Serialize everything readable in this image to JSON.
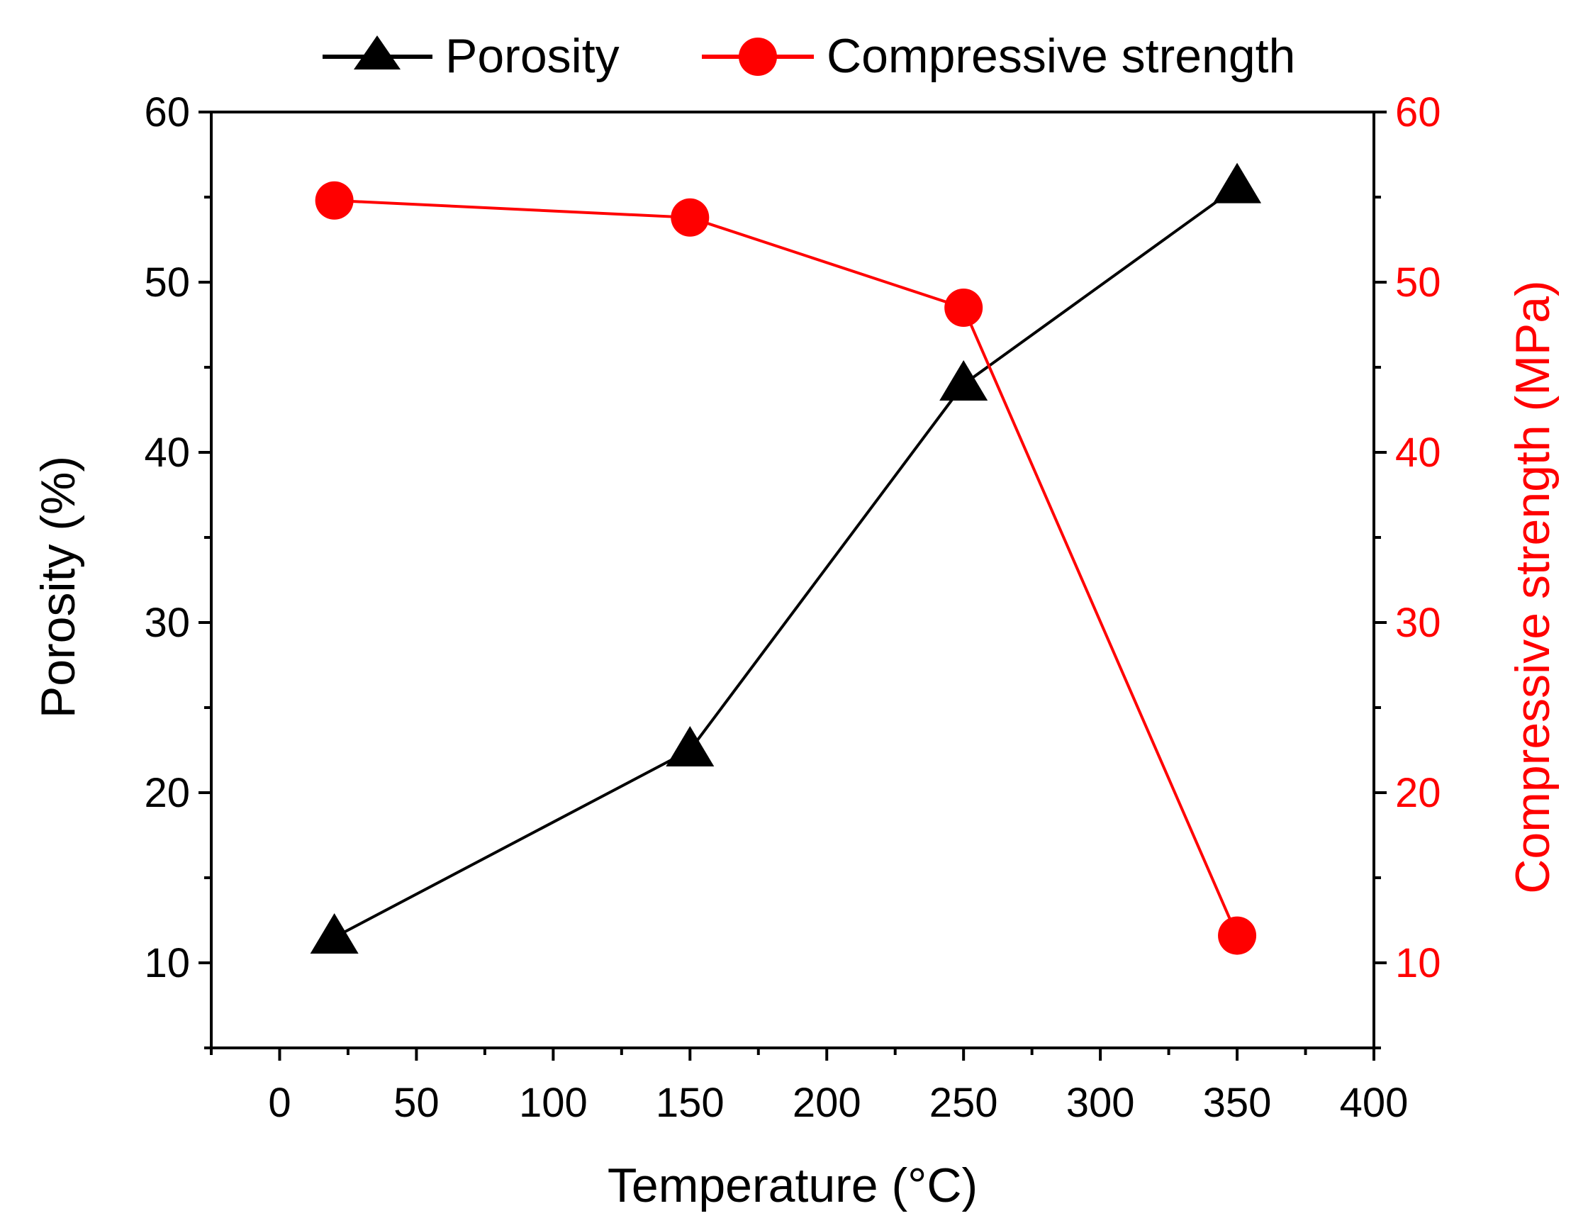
{
  "chart_data": {
    "type": "line",
    "xlabel": "Temperature (°C)",
    "ylabel_left": "Porosity (%)",
    "ylabel_right": "Compressive strength (MPa)",
    "xlim": [
      -25,
      400
    ],
    "ylim_left": [
      5,
      60
    ],
    "ylim_right": [
      5,
      60
    ],
    "x_ticks": [
      0,
      50,
      100,
      150,
      200,
      250,
      300,
      350,
      400
    ],
    "y_ticks_left": [
      10,
      20,
      30,
      40,
      50,
      60
    ],
    "y_ticks_right": [
      10,
      20,
      30,
      40,
      50,
      60
    ],
    "grid": false,
    "legend_position": "top (above plot)",
    "series": [
      {
        "name": "Porosity",
        "axis": "left",
        "color": "#000000",
        "marker": "triangle",
        "x": [
          20,
          150,
          250,
          350
        ],
        "y": [
          11.5,
          22.5,
          44,
          55.6
        ]
      },
      {
        "name": "Compressive strength",
        "axis": "right",
        "color": "#ff0000",
        "marker": "circle",
        "x": [
          20,
          150,
          250,
          350
        ],
        "y": [
          54.8,
          53.8,
          48.5,
          11.6
        ]
      }
    ]
  }
}
